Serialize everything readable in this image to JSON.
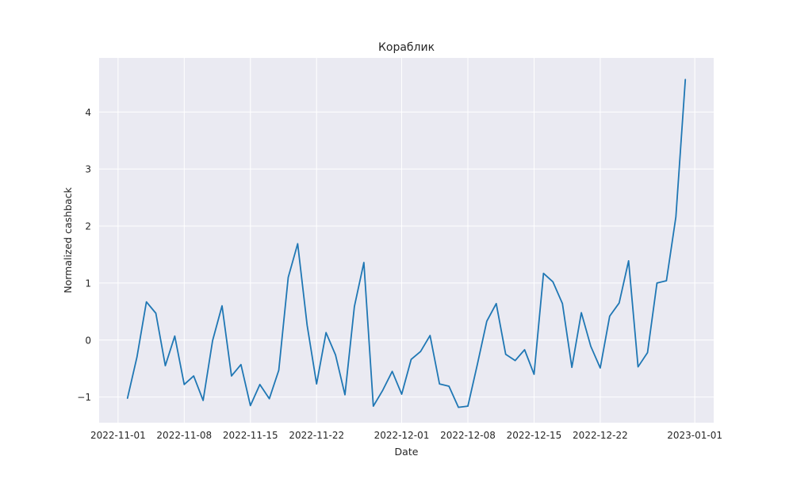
{
  "chart_data": {
    "type": "line",
    "title": "Кораблик",
    "xlabel": "Date",
    "ylabel": "Normalized cashback",
    "x_tick_labels": [
      "2022-11-01",
      "2022-11-08",
      "2022-11-15",
      "2022-11-22",
      "2022-12-01",
      "2022-12-08",
      "2022-12-15",
      "2022-12-22",
      "2023-01-01"
    ],
    "y_tick_labels": [
      "−1",
      "0",
      "1",
      "2",
      "3",
      "4"
    ],
    "y_ticks": [
      -1,
      0,
      1,
      2,
      3,
      4
    ],
    "xlim": [
      "2022-10-30",
      "2023-01-03"
    ],
    "ylim": [
      -1.45,
      4.95
    ],
    "grid": true,
    "background_color": "#eaeaf2",
    "grid_color": "#ffffff",
    "series": [
      {
        "color": "#1f77b4",
        "x": [
          "2022-11-02",
          "2022-11-03",
          "2022-11-04",
          "2022-11-05",
          "2022-11-06",
          "2022-11-07",
          "2022-11-08",
          "2022-11-09",
          "2022-11-10",
          "2022-11-11",
          "2022-11-12",
          "2022-11-13",
          "2022-11-14",
          "2022-11-15",
          "2022-11-16",
          "2022-11-17",
          "2022-11-18",
          "2022-11-19",
          "2022-11-20",
          "2022-11-21",
          "2022-11-22",
          "2022-11-23",
          "2022-11-24",
          "2022-11-25",
          "2022-11-26",
          "2022-11-27",
          "2022-11-28",
          "2022-11-29",
          "2022-11-30",
          "2022-12-01",
          "2022-12-02",
          "2022-12-03",
          "2022-12-04",
          "2022-12-05",
          "2022-12-06",
          "2022-12-07",
          "2022-12-08",
          "2022-12-09",
          "2022-12-10",
          "2022-12-11",
          "2022-12-12",
          "2022-12-13",
          "2022-12-14",
          "2022-12-15",
          "2022-12-16",
          "2022-12-17",
          "2022-12-18",
          "2022-12-19",
          "2022-12-20",
          "2022-12-21",
          "2022-12-22",
          "2022-12-23",
          "2022-12-24",
          "2022-12-25",
          "2022-12-26",
          "2022-12-27",
          "2022-12-28",
          "2022-12-29",
          "2022-12-30",
          "2022-12-31"
        ],
        "values": [
          -1.02,
          -0.3,
          0.67,
          0.47,
          -0.45,
          0.07,
          -0.78,
          -0.63,
          -1.06,
          -0.01,
          0.6,
          -0.63,
          -0.43,
          -1.15,
          -0.78,
          -1.03,
          -0.53,
          1.1,
          1.69,
          0.26,
          -0.77,
          0.13,
          -0.26,
          -0.96,
          0.59,
          1.36,
          -1.16,
          -0.88,
          -0.55,
          -0.95,
          -0.34,
          -0.2,
          0.08,
          -0.77,
          -0.81,
          -1.18,
          -1.16,
          -0.43,
          0.33,
          0.64,
          -0.25,
          -0.36,
          -0.17,
          -0.6,
          1.17,
          1.02,
          0.64,
          -0.48,
          0.48,
          -0.11,
          -0.49,
          0.42,
          0.65,
          1.39,
          -0.47,
          -0.22,
          1.0,
          1.04,
          2.16,
          4.57
        ]
      }
    ]
  }
}
